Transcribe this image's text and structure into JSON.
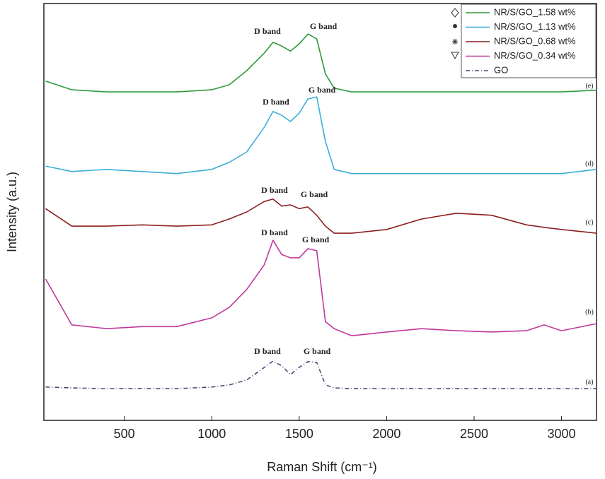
{
  "chart_data": {
    "type": "line",
    "xlabel": "Raman Shift (cm⁻¹)",
    "ylabel": "Intensity (a.u.)",
    "x": [
      50,
      200,
      400,
      600,
      800,
      1000,
      1100,
      1200,
      1300,
      1350,
      1400,
      1450,
      1500,
      1550,
      1600,
      1650,
      1700,
      1800,
      2000,
      2200,
      2400,
      2600,
      2800,
      2900,
      3000,
      3200
    ],
    "xlim": [
      40,
      3200
    ],
    "xticks": [
      500,
      1000,
      1500,
      2000,
      2500,
      3000
    ],
    "ylim": [
      0,
      100
    ],
    "legend": "upper right",
    "series": [
      {
        "name": "NR/S/GO_1.58 wt%",
        "color": "#2e9a3a",
        "values": [
          81.4,
          79.3,
          78.8,
          78.8,
          78.8,
          79.3,
          80.5,
          83.9,
          88.1,
          90.7,
          89.8,
          88.6,
          90.3,
          92.7,
          91.5,
          83.1,
          79.7,
          78.8,
          78.8,
          78.8,
          78.8,
          78.8,
          78.8,
          78.8,
          78.8,
          79.2
        ]
      },
      {
        "name": "NR/S/GO_1.13 wt%",
        "color": "#3aaed8",
        "values": [
          61.0,
          59.7,
          60.2,
          59.7,
          59.2,
          60.2,
          61.9,
          64.4,
          70.3,
          74.1,
          73.2,
          71.7,
          73.7,
          77.1,
          77.6,
          66.9,
          60.2,
          59.2,
          59.2,
          59.2,
          59.2,
          59.2,
          59.2,
          59.2,
          59.2,
          60.2
        ]
      },
      {
        "name": "NR/S/GO_0.68 wt%",
        "color": "#8b2020",
        "values": [
          50.8,
          46.6,
          46.6,
          46.9,
          46.6,
          46.9,
          48.3,
          50.0,
          52.5,
          53.1,
          51.4,
          51.7,
          50.8,
          51.2,
          49.2,
          46.6,
          44.9,
          44.9,
          45.8,
          48.3,
          49.7,
          49.2,
          46.9,
          46.3,
          45.8,
          44.9
        ]
      },
      {
        "name": "NR/S/GO_0.34 wt%",
        "color": "#c0389c",
        "values": [
          33.9,
          22.9,
          22.0,
          22.5,
          22.5,
          24.6,
          27.1,
          31.4,
          37.3,
          43.2,
          39.8,
          39.0,
          39.0,
          41.2,
          40.7,
          23.7,
          22.0,
          20.3,
          21.2,
          22.0,
          21.5,
          21.2,
          21.5,
          22.9,
          21.5,
          23.2
        ]
      },
      {
        "name": "GO",
        "color": "#4a4a7a",
        "dash": "6 3 1 3",
        "values": [
          8.0,
          7.8,
          7.6,
          7.6,
          7.6,
          8.0,
          8.5,
          9.7,
          12.7,
          14.2,
          13.1,
          11.0,
          12.7,
          14.1,
          13.9,
          8.5,
          7.8,
          7.6,
          7.6,
          7.6,
          7.6,
          7.6,
          7.6,
          7.6,
          7.6,
          7.6
        ]
      }
    ],
    "annotations": [
      "D band",
      "G band",
      "D band",
      "G band",
      "D band",
      "G band",
      "D band",
      "G band",
      "D band",
      "G band",
      "(e)",
      "(d)",
      "(c)",
      "(b)",
      "(a)"
    ]
  }
}
